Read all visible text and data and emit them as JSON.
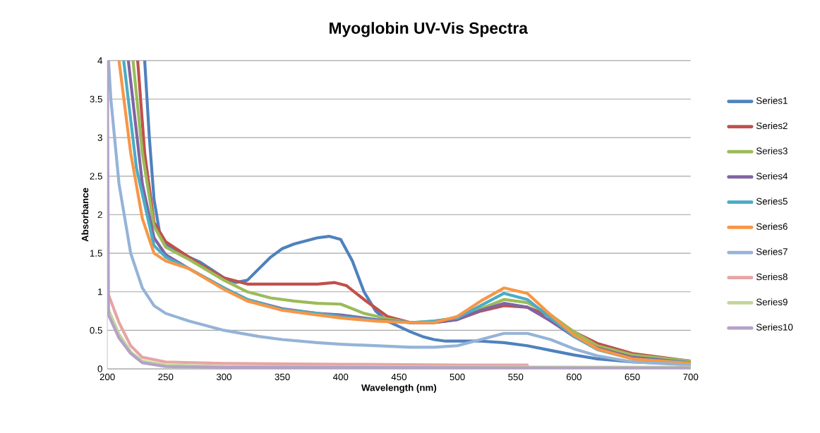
{
  "chart_data": {
    "type": "line",
    "title": "Myoglobin UV-Vis Spectra",
    "xlabel": "Wavelength (nm)",
    "ylabel": "Absorbance",
    "xlim": [
      200,
      700
    ],
    "xticks": [
      200,
      250,
      300,
      350,
      400,
      450,
      500,
      550,
      600,
      650,
      700
    ],
    "ylim": [
      0,
      4
    ],
    "yticks": [
      0,
      0.5,
      1,
      1.5,
      2,
      2.5,
      3,
      3.5,
      4
    ],
    "grid": "y",
    "legend": "right",
    "marker": "none",
    "line_style": "solid",
    "series": [
      {
        "name": "Series1",
        "color": "#4f81bd",
        "x": [
          232,
          236,
          240,
          245,
          250,
          260,
          270,
          280,
          290,
          300,
          310,
          320,
          330,
          340,
          350,
          360,
          370,
          380,
          390,
          400,
          410,
          420,
          430,
          440,
          450,
          460,
          470,
          480,
          490,
          500,
          520,
          540,
          560,
          580,
          600,
          620,
          650,
          700
        ],
        "values": [
          4,
          3,
          2.2,
          1.75,
          1.62,
          1.52,
          1.45,
          1.38,
          1.28,
          1.18,
          1.12,
          1.15,
          1.3,
          1.45,
          1.56,
          1.62,
          1.66,
          1.7,
          1.72,
          1.68,
          1.4,
          1.0,
          0.75,
          0.62,
          0.55,
          0.48,
          0.42,
          0.38,
          0.36,
          0.36,
          0.36,
          0.34,
          0.3,
          0.24,
          0.18,
          0.13,
          0.09,
          0.06
        ]
      },
      {
        "name": "Series2",
        "color": "#c0504d",
        "x": [
          226,
          232,
          240,
          250,
          260,
          280,
          300,
          320,
          340,
          360,
          380,
          395,
          405,
          420,
          440,
          460,
          480,
          500,
          520,
          540,
          560,
          580,
          600,
          620,
          650,
          700
        ],
        "values": [
          4,
          2.8,
          1.9,
          1.65,
          1.55,
          1.35,
          1.18,
          1.1,
          1.1,
          1.1,
          1.1,
          1.12,
          1.08,
          0.9,
          0.68,
          0.6,
          0.6,
          0.64,
          0.75,
          0.82,
          0.8,
          0.68,
          0.48,
          0.33,
          0.2,
          0.1
        ]
      },
      {
        "name": "Series3",
        "color": "#9bbb59",
        "x": [
          222,
          230,
          240,
          250,
          270,
          300,
          320,
          340,
          360,
          380,
          400,
          420,
          440,
          460,
          480,
          500,
          520,
          540,
          560,
          580,
          600,
          620,
          650,
          700
        ],
        "values": [
          4,
          2.8,
          1.85,
          1.58,
          1.42,
          1.15,
          1.0,
          0.92,
          0.88,
          0.85,
          0.84,
          0.72,
          0.65,
          0.6,
          0.62,
          0.66,
          0.78,
          0.9,
          0.86,
          0.7,
          0.48,
          0.3,
          0.18,
          0.1
        ]
      },
      {
        "name": "Series4",
        "color": "#8064a2",
        "x": [
          218,
          230,
          240,
          250,
          270,
          300,
          320,
          350,
          380,
          400,
          430,
          460,
          480,
          500,
          520,
          540,
          560,
          580,
          600,
          620,
          650,
          700
        ],
        "values": [
          4,
          2.4,
          1.7,
          1.48,
          1.3,
          1.05,
          0.9,
          0.78,
          0.72,
          0.7,
          0.64,
          0.6,
          0.6,
          0.64,
          0.76,
          0.85,
          0.8,
          0.62,
          0.42,
          0.27,
          0.15,
          0.08
        ]
      },
      {
        "name": "Series5",
        "color": "#4bacc6",
        "x": [
          214,
          225,
          240,
          250,
          270,
          300,
          320,
          350,
          380,
          400,
          430,
          460,
          480,
          500,
          520,
          540,
          560,
          580,
          600,
          620,
          650,
          700
        ],
        "values": [
          4,
          2.6,
          1.6,
          1.45,
          1.3,
          1.05,
          0.9,
          0.77,
          0.72,
          0.68,
          0.63,
          0.6,
          0.62,
          0.66,
          0.82,
          0.98,
          0.9,
          0.66,
          0.42,
          0.25,
          0.13,
          0.08
        ]
      },
      {
        "name": "Series6",
        "color": "#f79646",
        "x": [
          210,
          220,
          230,
          240,
          250,
          270,
          300,
          320,
          350,
          380,
          400,
          430,
          460,
          480,
          500,
          520,
          540,
          560,
          580,
          600,
          620,
          650,
          700
        ],
        "values": [
          4,
          2.8,
          1.95,
          1.5,
          1.4,
          1.3,
          1.03,
          0.88,
          0.76,
          0.7,
          0.66,
          0.62,
          0.6,
          0.6,
          0.68,
          0.88,
          1.05,
          0.98,
          0.7,
          0.44,
          0.26,
          0.13,
          0.07
        ]
      },
      {
        "name": "Series7",
        "color": "#95b3d7",
        "x": [
          201,
          203,
          210,
          220,
          230,
          240,
          250,
          270,
          300,
          330,
          350,
          380,
          400,
          430,
          460,
          480,
          500,
          520,
          540,
          560,
          580,
          600,
          620,
          650,
          700
        ],
        "values": [
          4,
          3.5,
          2.4,
          1.5,
          1.05,
          0.82,
          0.72,
          0.62,
          0.5,
          0.42,
          0.38,
          0.34,
          0.32,
          0.3,
          0.28,
          0.28,
          0.3,
          0.38,
          0.46,
          0.46,
          0.38,
          0.26,
          0.17,
          0.09,
          0.05
        ]
      },
      {
        "name": "Series8",
        "color": "#e6a5a4",
        "x": [
          200,
          210,
          220,
          230,
          250,
          300,
          400,
          500,
          560
        ],
        "values": [
          1.0,
          0.6,
          0.3,
          0.15,
          0.09,
          0.07,
          0.06,
          0.05,
          0.05
        ]
      },
      {
        "name": "Series9",
        "color": "#c3d69b",
        "x": [
          200,
          210,
          220,
          230,
          250,
          300,
          700
        ],
        "values": [
          0.8,
          0.45,
          0.22,
          0.1,
          0.05,
          0.03,
          0.02
        ]
      },
      {
        "name": "Series10",
        "color": "#b3a2c7",
        "x": [
          200,
          201,
          210,
          220,
          230,
          250,
          300,
          700
        ],
        "values": [
          4,
          0.7,
          0.4,
          0.2,
          0.08,
          0.03,
          0.02,
          0.01
        ]
      }
    ]
  }
}
